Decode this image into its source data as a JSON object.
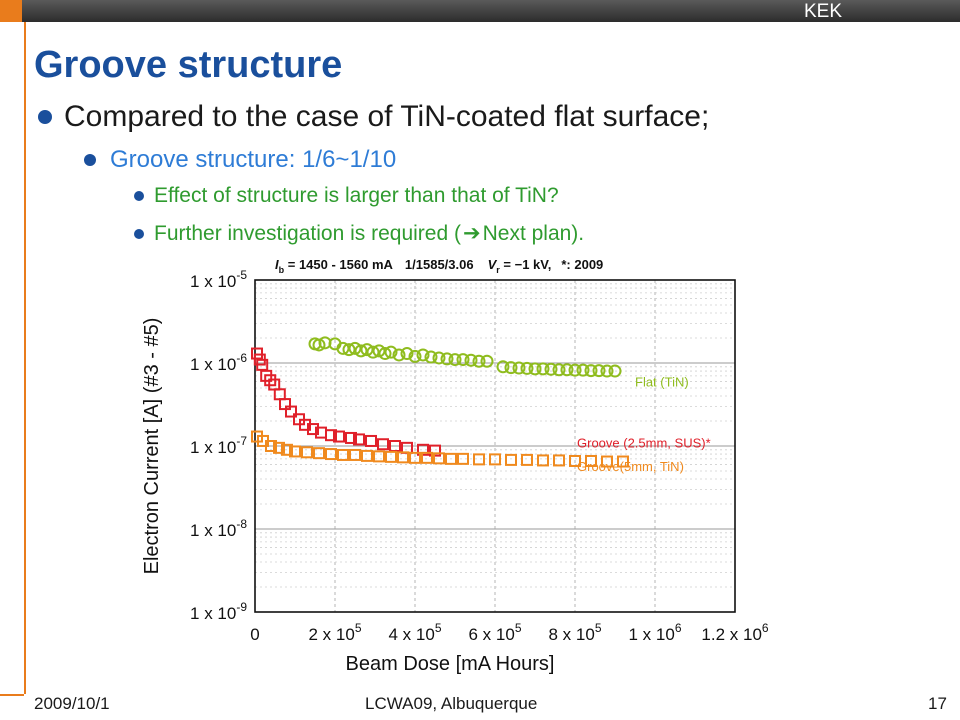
{
  "header": {
    "org": "KEK"
  },
  "slide": {
    "title": "Groove structure",
    "bullets": [
      "Compared to the case of TiN-coated flat surface;",
      "Groove structure: 1/6~1/10",
      "Effect of structure is larger than that of TiN?",
      "Further investigation is required (",
      "Next plan)."
    ]
  },
  "footer": {
    "date": "2009/10/1",
    "conference": "LCWA09, Albuquerque",
    "page": "17"
  },
  "colors": {
    "title": "#1a4f9c",
    "flat_tin": "#8fbc1e",
    "groove_sus": "#e0202a",
    "groove_tin": "#f08a1e"
  },
  "chart_data": {
    "type": "scatter",
    "title": "",
    "xlabel": "Beam Dose [mA Hours]",
    "ylabel": "Electron Current [A] (#3 - #5)",
    "xlim": [
      0,
      1200000
    ],
    "ylim_log10": [
      -9,
      -5
    ],
    "y_scale": "log",
    "grid": true,
    "x_ticks": [
      {
        "value": 0,
        "label": "0"
      },
      {
        "value": 200000,
        "label": "2 x 10",
        "exp": "5"
      },
      {
        "value": 400000,
        "label": "4 x 10",
        "exp": "5"
      },
      {
        "value": 600000,
        "label": "6 x 10",
        "exp": "5"
      },
      {
        "value": 800000,
        "label": "8 x 10",
        "exp": "5"
      },
      {
        "value": 1000000,
        "label": "1 x 10",
        "exp": "6"
      },
      {
        "value": 1200000,
        "label": "1.2 x 10",
        "exp": "6"
      }
    ],
    "y_ticks": [
      {
        "log10": -5,
        "label": "1 x 10",
        "exp": "-5"
      },
      {
        "log10": -6,
        "label": "1 x 10",
        "exp": "-6"
      },
      {
        "log10": -7,
        "label": "1 x 10",
        "exp": "-7"
      },
      {
        "log10": -8,
        "label": "1 x 10",
        "exp": "-8"
      },
      {
        "log10": -9,
        "label": "1 x 10",
        "exp": "-9"
      }
    ],
    "annotation": {
      "ib_sym": "I",
      "ib_sub": "b",
      "ib_rest": " = 1450 - 1560 mA",
      "bunch": "1/1585/3.06",
      "vr_sym": "V",
      "vr_sub": "r",
      "vr_rest": " = −1 kV,",
      "note": "*: 2009"
    },
    "legend_placement": "right",
    "series": [
      {
        "name": "Flat (TiN)",
        "color": "#8fbc1e",
        "marker": "circle",
        "points": [
          [
            150000,
            1.7e-06
          ],
          [
            160000,
            1.65e-06
          ],
          [
            175000,
            1.75e-06
          ],
          [
            200000,
            1.7e-06
          ],
          [
            220000,
            1.5e-06
          ],
          [
            235000,
            1.45e-06
          ],
          [
            250000,
            1.5e-06
          ],
          [
            265000,
            1.4e-06
          ],
          [
            280000,
            1.45e-06
          ],
          [
            295000,
            1.35e-06
          ],
          [
            310000,
            1.4e-06
          ],
          [
            325000,
            1.3e-06
          ],
          [
            340000,
            1.35e-06
          ],
          [
            360000,
            1.25e-06
          ],
          [
            380000,
            1.3e-06
          ],
          [
            400000,
            1.2e-06
          ],
          [
            420000,
            1.25e-06
          ],
          [
            440000,
            1.18e-06
          ],
          [
            460000,
            1.15e-06
          ],
          [
            480000,
            1.12e-06
          ],
          [
            500000,
            1.1e-06
          ],
          [
            520000,
            1.1e-06
          ],
          [
            540000,
            1.08e-06
          ],
          [
            560000,
            1.05e-06
          ],
          [
            580000,
            1.05e-06
          ],
          [
            620000,
            9e-07
          ],
          [
            640000,
            8.8e-07
          ],
          [
            660000,
            8.7e-07
          ],
          [
            680000,
            8.6e-07
          ],
          [
            700000,
            8.5e-07
          ],
          [
            720000,
            8.5e-07
          ],
          [
            740000,
            8.4e-07
          ],
          [
            760000,
            8.3e-07
          ],
          [
            780000,
            8.3e-07
          ],
          [
            800000,
            8.2e-07
          ],
          [
            820000,
            8.2e-07
          ],
          [
            840000,
            8.1e-07
          ],
          [
            860000,
            8.1e-07
          ],
          [
            880000,
            8e-07
          ],
          [
            900000,
            8e-07
          ]
        ]
      },
      {
        "name": "Groove (2.5mm, SUS)*",
        "color": "#e0202a",
        "marker": "square",
        "points": [
          [
            5000,
            1.3e-06
          ],
          [
            12000,
            1.1e-06
          ],
          [
            18000,
            9.5e-07
          ],
          [
            28000,
            7e-07
          ],
          [
            38000,
            6.2e-07
          ],
          [
            48000,
            5.5e-07
          ],
          [
            62000,
            4.2e-07
          ],
          [
            75000,
            3.2e-07
          ],
          [
            90000,
            2.6e-07
          ],
          [
            110000,
            2.1e-07
          ],
          [
            125000,
            1.8e-07
          ],
          [
            145000,
            1.6e-07
          ],
          [
            165000,
            1.45e-07
          ],
          [
            190000,
            1.35e-07
          ],
          [
            210000,
            1.3e-07
          ],
          [
            240000,
            1.25e-07
          ],
          [
            260000,
            1.2e-07
          ],
          [
            290000,
            1.15e-07
          ],
          [
            320000,
            1.05e-07
          ],
          [
            350000,
            1e-07
          ],
          [
            380000,
            9.5e-08
          ],
          [
            420000,
            9e-08
          ],
          [
            450000,
            8.8e-08
          ]
        ]
      },
      {
        "name": "Groove(5mm, TiN)",
        "color": "#f08a1e",
        "marker": "square",
        "points": [
          [
            5000,
            1.3e-07
          ],
          [
            20000,
            1.15e-07
          ],
          [
            40000,
            1e-07
          ],
          [
            60000,
            9.5e-08
          ],
          [
            80000,
            9e-08
          ],
          [
            100000,
            8.6e-08
          ],
          [
            130000,
            8.4e-08
          ],
          [
            160000,
            8.2e-08
          ],
          [
            190000,
            8e-08
          ],
          [
            220000,
            7.8e-08
          ],
          [
            250000,
            7.8e-08
          ],
          [
            280000,
            7.6e-08
          ],
          [
            310000,
            7.5e-08
          ],
          [
            340000,
            7.4e-08
          ],
          [
            370000,
            7.3e-08
          ],
          [
            400000,
            7.2e-08
          ],
          [
            430000,
            7.2e-08
          ],
          [
            460000,
            7.1e-08
          ],
          [
            490000,
            7e-08
          ],
          [
            520000,
            7e-08
          ],
          [
            560000,
            6.9e-08
          ],
          [
            600000,
            6.9e-08
          ],
          [
            640000,
            6.8e-08
          ],
          [
            680000,
            6.8e-08
          ],
          [
            720000,
            6.7e-08
          ],
          [
            760000,
            6.7e-08
          ],
          [
            800000,
            6.6e-08
          ],
          [
            840000,
            6.6e-08
          ],
          [
            880000,
            6.5e-08
          ],
          [
            920000,
            6.5e-08
          ]
        ]
      }
    ]
  }
}
